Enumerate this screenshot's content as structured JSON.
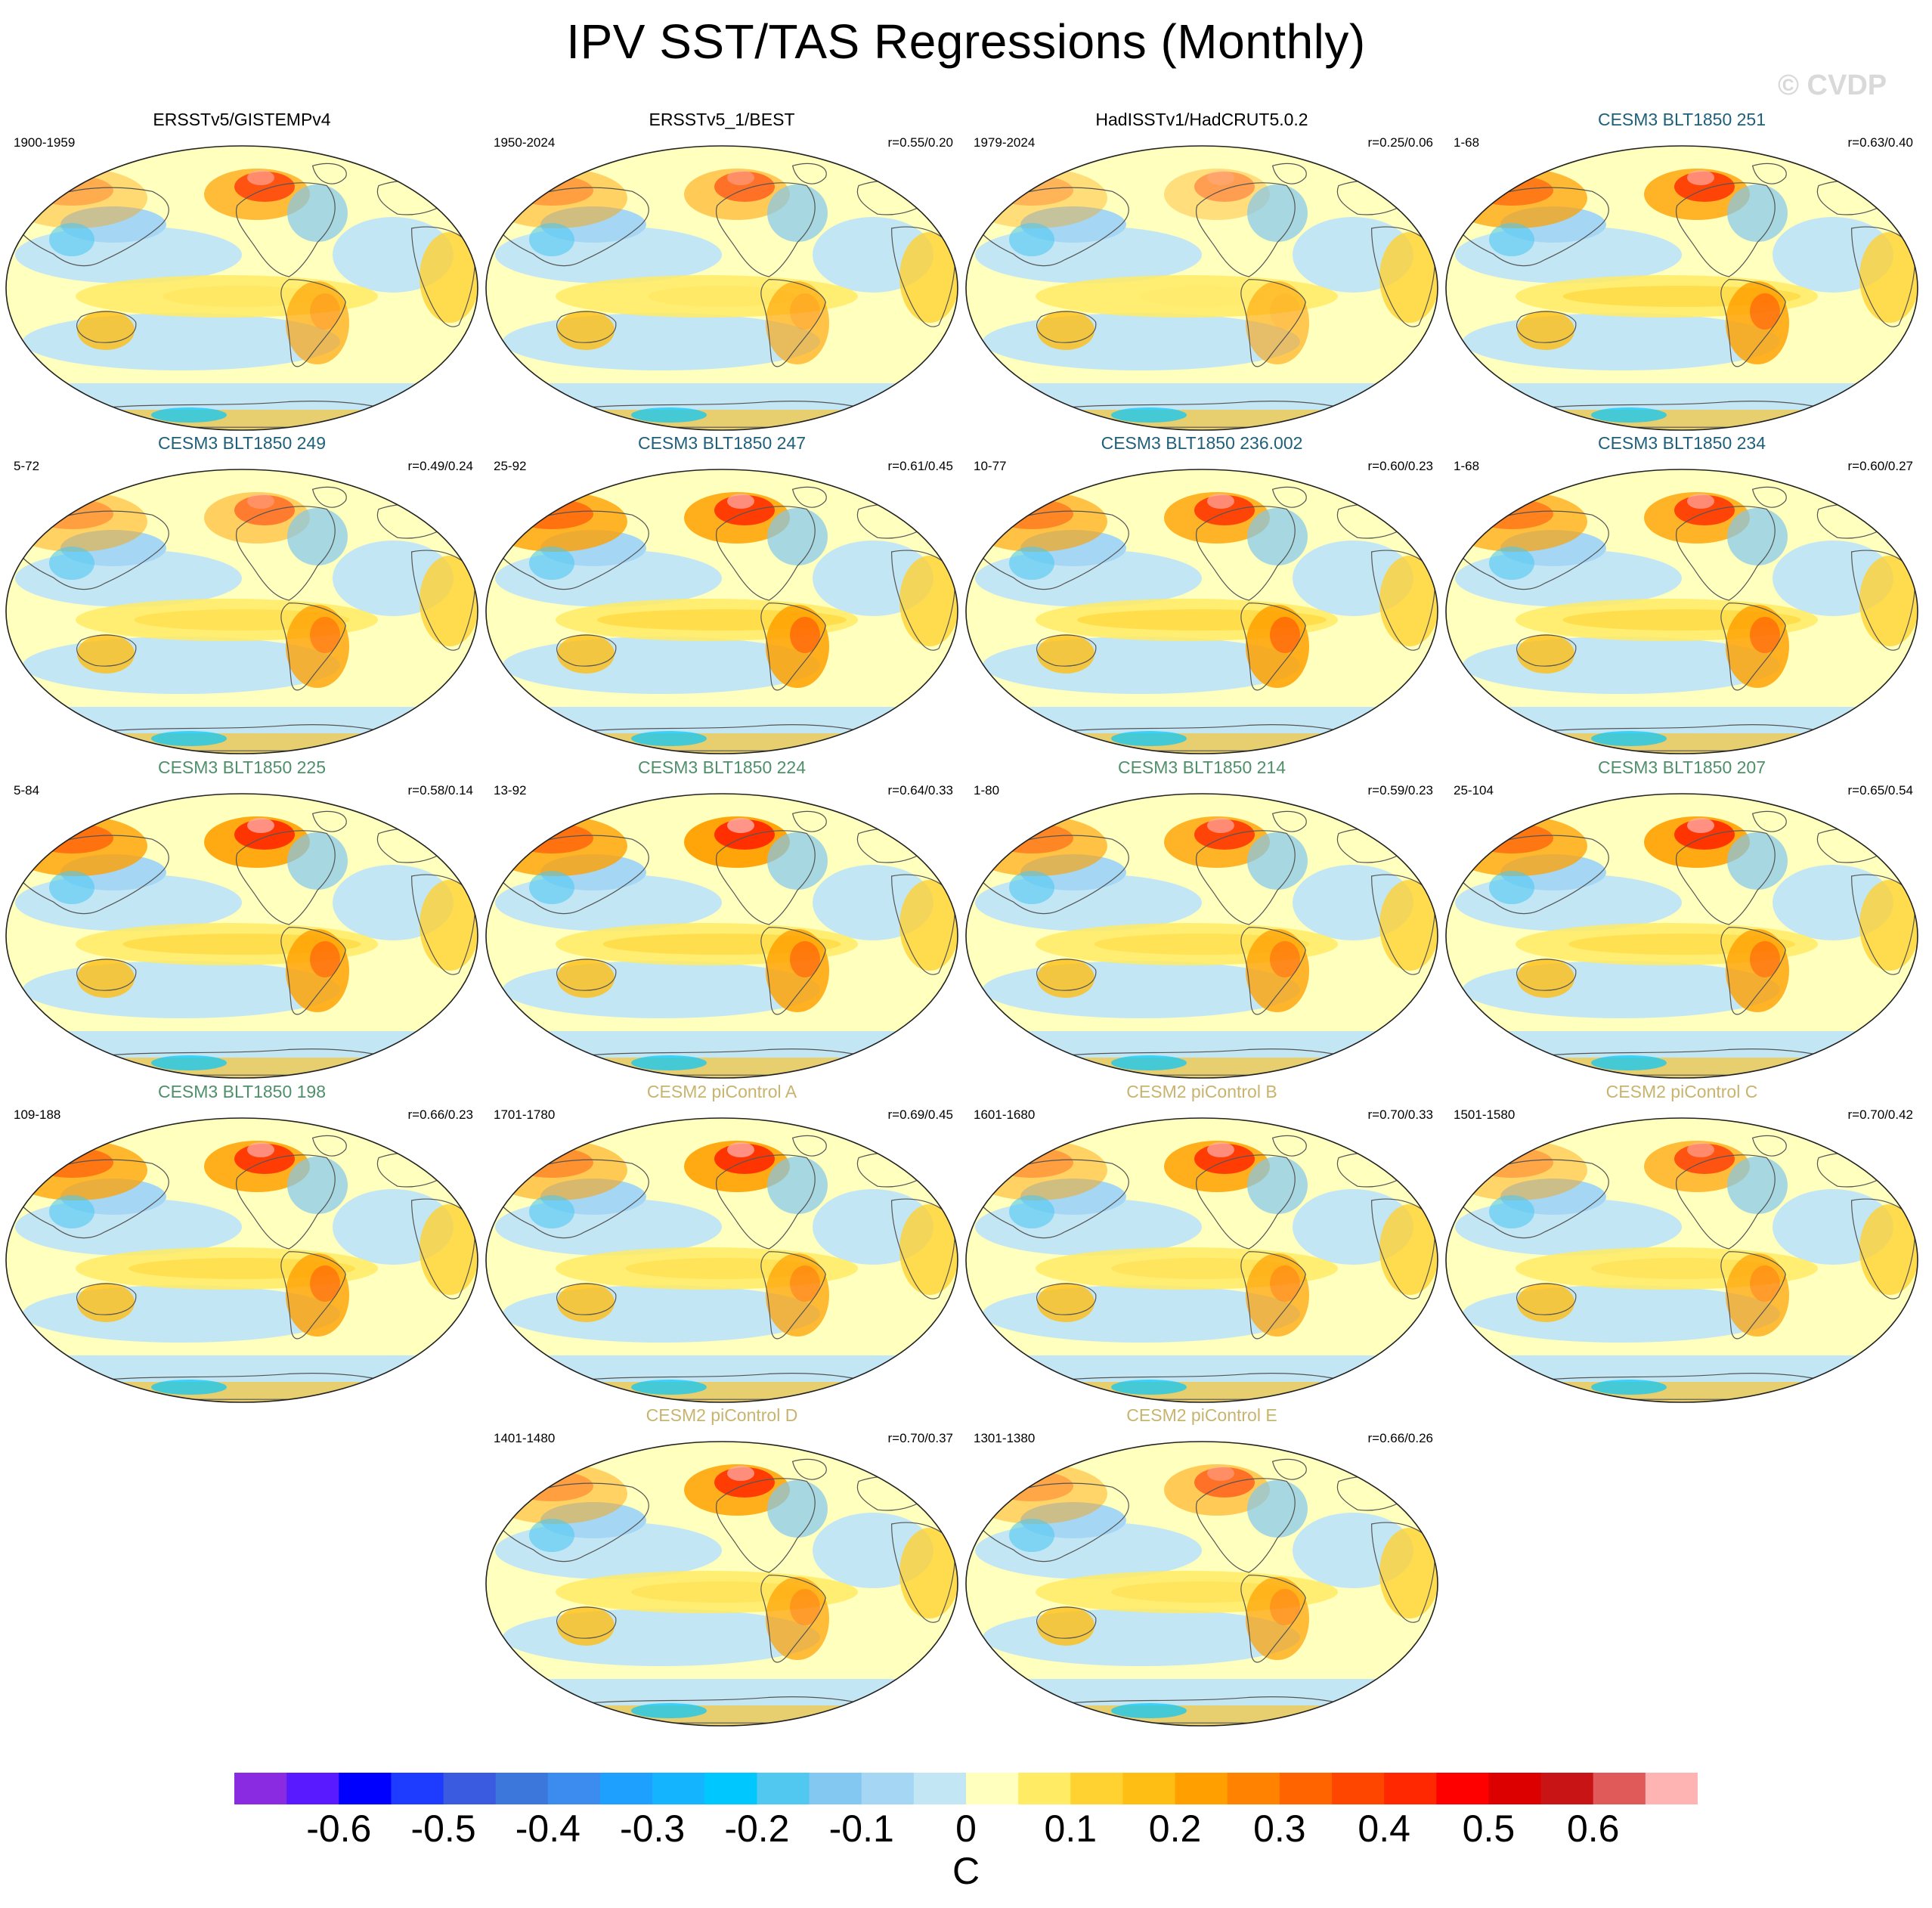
{
  "title": "IPV SST/TAS Regressions (Monthly)",
  "watermark": "© CVDP",
  "units": "C",
  "legend": {
    "colors": [
      "#8a2be2",
      "#5a1aff",
      "#0000ff",
      "#1e3cff",
      "#3a5ae0",
      "#3c78dc",
      "#3c8cf0",
      "#1ea0ff",
      "#14b4ff",
      "#00c8ff",
      "#50c8f0",
      "#82c8f0",
      "#a5d7f5",
      "#c3e6f5",
      "#ffffbe",
      "#ffeb64",
      "#ffd232",
      "#ffbe14",
      "#ffa000",
      "#ff8200",
      "#ff6400",
      "#ff4600",
      "#ff2800",
      "#ff0000",
      "#dc0000",
      "#c81414",
      "#e05a5a",
      "#ffb4b4"
    ],
    "labels": [
      "-0.6",
      "-0.5",
      "-0.4",
      "-0.3",
      "-0.2",
      "-0.1",
      "0",
      "0.1",
      "0.2",
      "0.3",
      "0.4",
      "0.5",
      "0.6"
    ]
  },
  "panels": [
    {
      "title": "ERSSTv5/GISTEMPv4",
      "period": "1900-1959",
      "corr": "",
      "title_color": "#000000"
    },
    {
      "title": "ERSSTv5_1/BEST",
      "period": "1950-2024",
      "corr": "r=0.55/0.20",
      "title_color": "#000000"
    },
    {
      "title": "HadISSTv1/HadCRUT5.0.2",
      "period": "1979-2024",
      "corr": "r=0.25/0.06",
      "title_color": "#000000"
    },
    {
      "title": "CESM3 BLT1850 251",
      "period": "1-68",
      "corr": "r=0.63/0.40",
      "title_color": "#1f5f7a"
    },
    {
      "title": "CESM3 BLT1850 249",
      "period": "5-72",
      "corr": "r=0.49/0.24",
      "title_color": "#1f5f7a"
    },
    {
      "title": "CESM3 BLT1850 247",
      "period": "25-92",
      "corr": "r=0.61/0.45",
      "title_color": "#1f5f7a"
    },
    {
      "title": "CESM3 BLT1850 236.002",
      "period": "10-77",
      "corr": "r=0.60/0.23",
      "title_color": "#1f5f7a"
    },
    {
      "title": "CESM3 BLT1850 234",
      "period": "1-68",
      "corr": "r=0.60/0.27",
      "title_color": "#1f5f7a"
    },
    {
      "title": "CESM3 BLT1850 225",
      "period": "5-84",
      "corr": "r=0.58/0.14",
      "title_color": "#4f8f6a"
    },
    {
      "title": "CESM3 BLT1850 224",
      "period": "13-92",
      "corr": "r=0.64/0.33",
      "title_color": "#4f8f6a"
    },
    {
      "title": "CESM3 BLT1850 214",
      "period": "1-80",
      "corr": "r=0.59/0.23",
      "title_color": "#4f8f6a"
    },
    {
      "title": "CESM3 BLT1850 207",
      "period": "25-104",
      "corr": "r=0.65/0.54",
      "title_color": "#4f8f6a"
    },
    {
      "title": "CESM3 BLT1850 198",
      "period": "109-188",
      "corr": "r=0.66/0.23",
      "title_color": "#4f8f6a"
    },
    {
      "title": "CESM2 piControl A",
      "period": "1701-1780",
      "corr": "r=0.69/0.45",
      "title_color": "#c8b46e"
    },
    {
      "title": "CESM2 piControl B",
      "period": "1601-1680",
      "corr": "r=0.70/0.33",
      "title_color": "#c8b46e"
    },
    {
      "title": "CESM2 piControl C",
      "period": "1501-1580",
      "corr": "r=0.70/0.42",
      "title_color": "#c8b46e"
    },
    {
      "title": "CESM2 piControl D",
      "period": "1401-1480",
      "corr": "r=0.70/0.37",
      "title_color": "#c8b46e"
    },
    {
      "title": "CESM2 piControl E",
      "period": "1301-1380",
      "corr": "r=0.66/0.26",
      "title_color": "#c8b46e"
    }
  ]
}
